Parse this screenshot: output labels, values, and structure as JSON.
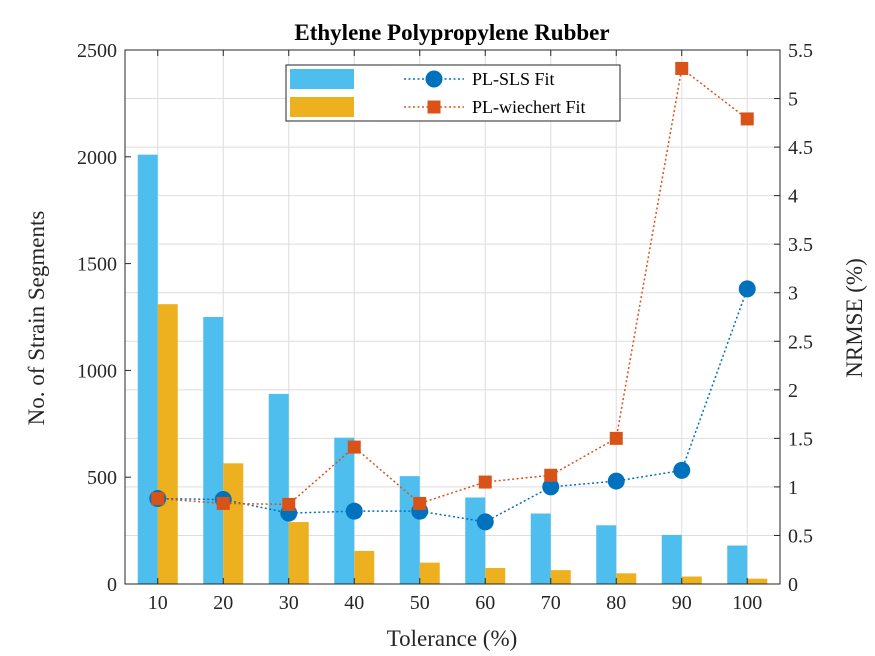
{
  "chart_data": {
    "type": "bar",
    "title": "Ethylene Polypropylene Rubber",
    "xlabel": "Tolerance (%)",
    "ylabel": "No. of Strain Segments",
    "y2label": "NRMSE (%)",
    "categories": [
      "10",
      "20",
      "30",
      "40",
      "50",
      "60",
      "70",
      "80",
      "90",
      "100"
    ],
    "ylim": [
      0,
      2500
    ],
    "y2lim": [
      0,
      5.5
    ],
    "yticks": [
      0,
      500,
      1000,
      1500,
      2000,
      2500
    ],
    "y2ticks": [
      "0",
      "0.5",
      "1",
      "1.5",
      "2",
      "2.5",
      "3",
      "3.5",
      "4",
      "4.5",
      "5",
      "5.5"
    ],
    "grid": true,
    "legend_position": "top",
    "bar_series": [
      {
        "name": "",
        "color": "#4DBEEE",
        "values": [
          2010,
          1250,
          890,
          685,
          505,
          405,
          330,
          275,
          230,
          180
        ]
      },
      {
        "name": "",
        "color": "#EDB120",
        "values": [
          1310,
          565,
          290,
          155,
          100,
          75,
          65,
          50,
          35,
          25
        ]
      }
    ],
    "line_series": [
      {
        "name": "PL-SLS Fit",
        "color": "#0072BD",
        "marker": "circle",
        "axis": "right",
        "values": [
          0.88,
          0.87,
          0.73,
          0.75,
          0.75,
          0.64,
          1.0,
          1.06,
          1.17,
          3.04
        ]
      },
      {
        "name": "PL-wiechert Fit",
        "color": "#D95319",
        "marker": "square",
        "axis": "right",
        "values": [
          0.88,
          0.83,
          0.82,
          1.41,
          0.83,
          1.05,
          1.12,
          1.5,
          5.31,
          4.79
        ]
      }
    ]
  }
}
